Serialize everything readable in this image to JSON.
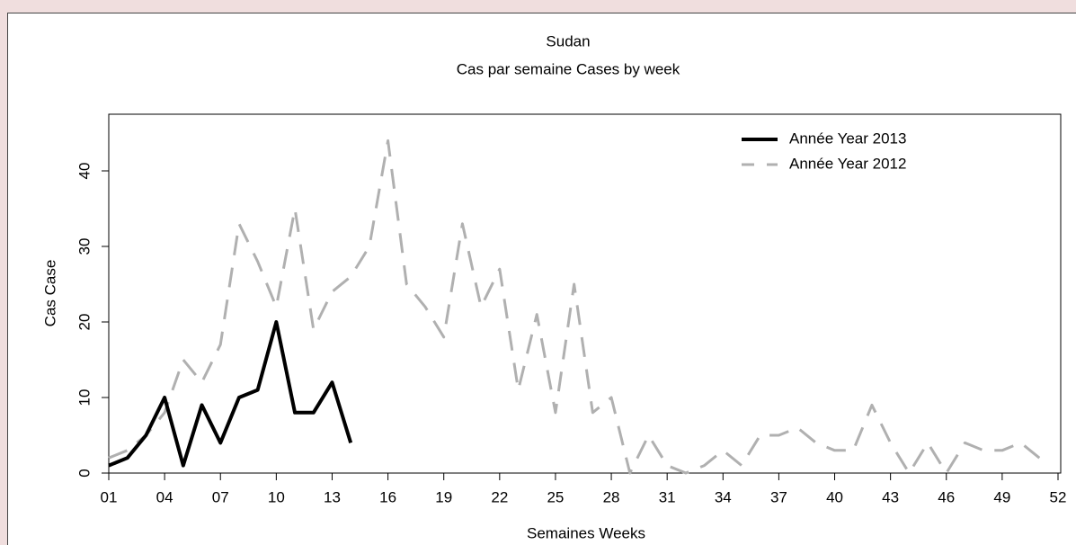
{
  "chart_data": {
    "type": "line",
    "title": "Sudan",
    "subtitle": "Cas par semaine Cases by week",
    "x_label": "Semaines Weeks",
    "y_label": "Cas Case",
    "x": [
      1,
      2,
      3,
      4,
      5,
      6,
      7,
      8,
      9,
      10,
      11,
      12,
      13,
      14,
      15,
      16,
      17,
      18,
      19,
      20,
      21,
      22,
      23,
      24,
      25,
      26,
      27,
      28,
      29,
      30,
      31,
      32,
      33,
      34,
      35,
      36,
      37,
      38,
      39,
      40,
      41,
      42,
      43,
      44,
      45,
      46,
      47,
      48,
      49,
      50,
      51
    ],
    "series": [
      {
        "name": "Année Year 2013",
        "color": "#000000",
        "dashed": false,
        "values": [
          1,
          2,
          5,
          10,
          1,
          9,
          4,
          10,
          11,
          20,
          8,
          8,
          12,
          4,
          null,
          null,
          null,
          null,
          null,
          null,
          null,
          null,
          null,
          null,
          null,
          null,
          null,
          null,
          null,
          null,
          null,
          null,
          null,
          null,
          null,
          null,
          null,
          null,
          null,
          null,
          null,
          null,
          null,
          null,
          null,
          null,
          null,
          null,
          null,
          null,
          null
        ]
      },
      {
        "name": "Année Year 2012",
        "color": "#b0b0b0",
        "dashed": true,
        "values": [
          2,
          3,
          5,
          8,
          15,
          12,
          17,
          33,
          28,
          22,
          35,
          19,
          24,
          26,
          30,
          44,
          25,
          22,
          18,
          33,
          22,
          27,
          11,
          21,
          8,
          25,
          8,
          10,
          0,
          5,
          1,
          0,
          1,
          3,
          1,
          5,
          5,
          6,
          4,
          3,
          3,
          9,
          4,
          0,
          4,
          0,
          4,
          3,
          3,
          4,
          2
        ]
      }
    ],
    "xlim": [
      1,
      52
    ],
    "xticks": [
      {
        "value": 1,
        "label": "01"
      },
      {
        "value": 4,
        "label": "04"
      },
      {
        "value": 7,
        "label": "07"
      },
      10,
      13,
      16,
      19,
      22,
      25,
      28,
      31,
      34,
      37,
      40,
      43,
      46,
      49,
      52
    ],
    "ylim": [
      0,
      47.5
    ],
    "yticks": [
      0,
      10,
      20,
      30,
      40
    ],
    "legend": "top-right"
  }
}
